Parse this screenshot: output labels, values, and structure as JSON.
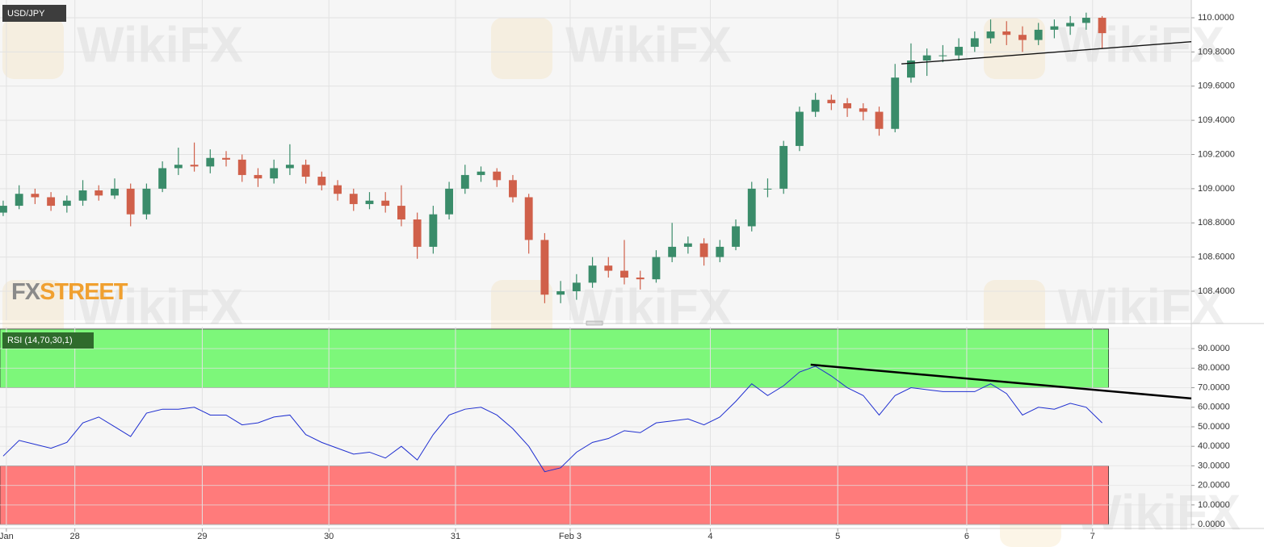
{
  "chart_data": [
    {
      "type": "candlestick",
      "title": "USD/JPY",
      "logo": [
        "FX",
        "STREET"
      ],
      "watermark": "WikiFX",
      "up_color": "#3a8c6a",
      "down_color": "#d0604a",
      "xlim": [
        -0.2,
        74.6
      ],
      "ylim": [
        108.23,
        110.104
      ],
      "yticks": [
        {
          "value": 108.4,
          "label": "108.4000"
        },
        {
          "value": 108.6,
          "label": "108.6000"
        },
        {
          "value": 108.8,
          "label": "108.8000"
        },
        {
          "value": 109.0,
          "label": "109.0000"
        },
        {
          "value": 109.2,
          "label": "109.2000"
        },
        {
          "value": 109.4,
          "label": "109.4000"
        },
        {
          "value": 109.6,
          "label": "109.6000"
        },
        {
          "value": 109.8,
          "label": "109.8000"
        },
        {
          "value": 110.0,
          "label": "110.0000"
        }
      ],
      "grid": true,
      "ohlc": [
        [
          108.86,
          108.93,
          108.84,
          108.9
        ],
        [
          108.9,
          109.02,
          108.88,
          108.97
        ],
        [
          108.97,
          109.0,
          108.91,
          108.95
        ],
        [
          108.95,
          108.98,
          108.87,
          108.9
        ],
        [
          108.9,
          108.96,
          108.86,
          108.93
        ],
        [
          108.93,
          109.05,
          108.9,
          108.99
        ],
        [
          108.99,
          109.02,
          108.93,
          108.96
        ],
        [
          108.96,
          109.06,
          108.94,
          109.0
        ],
        [
          109.0,
          109.03,
          108.78,
          108.85
        ],
        [
          108.85,
          109.03,
          108.82,
          109.0
        ],
        [
          109.0,
          109.16,
          108.98,
          109.12
        ],
        [
          109.12,
          109.24,
          109.08,
          109.14
        ],
        [
          109.14,
          109.27,
          109.1,
          109.13
        ],
        [
          109.13,
          109.23,
          109.09,
          109.18
        ],
        [
          109.18,
          109.22,
          109.13,
          109.17
        ],
        [
          109.17,
          109.2,
          109.04,
          109.08
        ],
        [
          109.08,
          109.12,
          109.01,
          109.06
        ],
        [
          109.06,
          109.17,
          109.03,
          109.12
        ],
        [
          109.12,
          109.26,
          109.08,
          109.14
        ],
        [
          109.14,
          109.17,
          109.03,
          109.07
        ],
        [
          109.07,
          109.1,
          108.99,
          109.02
        ],
        [
          109.02,
          109.05,
          108.93,
          108.97
        ],
        [
          108.97,
          109.0,
          108.87,
          108.91
        ],
        [
          108.91,
          108.98,
          108.88,
          108.93
        ],
        [
          108.93,
          108.98,
          108.86,
          108.9
        ],
        [
          108.9,
          109.02,
          108.78,
          108.82
        ],
        [
          108.82,
          108.86,
          108.59,
          108.66
        ],
        [
          108.66,
          108.9,
          108.62,
          108.85
        ],
        [
          108.85,
          109.04,
          108.82,
          109.0
        ],
        [
          109.0,
          109.14,
          108.97,
          109.08
        ],
        [
          109.08,
          109.13,
          109.04,
          109.1
        ],
        [
          109.1,
          109.12,
          109.01,
          109.05
        ],
        [
          109.05,
          109.08,
          108.92,
          108.95
        ],
        [
          108.95,
          108.97,
          108.62,
          108.7
        ],
        [
          108.7,
          108.74,
          108.33,
          108.38
        ],
        [
          108.38,
          108.46,
          108.33,
          108.4
        ],
        [
          108.4,
          108.5,
          108.35,
          108.45
        ],
        [
          108.45,
          108.6,
          108.42,
          108.55
        ],
        [
          108.55,
          108.6,
          108.48,
          108.52
        ],
        [
          108.52,
          108.7,
          108.44,
          108.48
        ],
        [
          108.48,
          108.52,
          108.41,
          108.47
        ],
        [
          108.47,
          108.64,
          108.45,
          108.6
        ],
        [
          108.6,
          108.8,
          108.57,
          108.66
        ],
        [
          108.66,
          108.72,
          108.62,
          108.68
        ],
        [
          108.68,
          108.71,
          108.55,
          108.6
        ],
        [
          108.6,
          108.7,
          108.57,
          108.66
        ],
        [
          108.66,
          108.82,
          108.64,
          108.78
        ],
        [
          108.78,
          109.04,
          108.75,
          109.0
        ],
        [
          109.0,
          109.06,
          108.95,
          109.0
        ],
        [
          109.0,
          109.28,
          108.97,
          109.25
        ],
        [
          109.25,
          109.48,
          109.22,
          109.45
        ],
        [
          109.45,
          109.56,
          109.42,
          109.52
        ],
        [
          109.52,
          109.55,
          109.46,
          109.5
        ],
        [
          109.5,
          109.53,
          109.42,
          109.47
        ],
        [
          109.47,
          109.5,
          109.4,
          109.45
        ],
        [
          109.45,
          109.48,
          109.31,
          109.35
        ],
        [
          109.35,
          109.73,
          109.33,
          109.65
        ],
        [
          109.65,
          109.85,
          109.62,
          109.75
        ],
        [
          109.75,
          109.82,
          109.66,
          109.78
        ],
        [
          109.78,
          109.84,
          109.74,
          109.78
        ],
        [
          109.78,
          109.88,
          109.75,
          109.83
        ],
        [
          109.83,
          109.92,
          109.8,
          109.88
        ],
        [
          109.88,
          109.99,
          109.85,
          109.92
        ],
        [
          109.92,
          109.98,
          109.84,
          109.9
        ],
        [
          109.9,
          109.95,
          109.8,
          109.87
        ],
        [
          109.87,
          109.97,
          109.84,
          109.93
        ],
        [
          109.93,
          109.99,
          109.88,
          109.95
        ],
        [
          109.95,
          110.01,
          109.9,
          109.97
        ],
        [
          109.97,
          110.03,
          109.93,
          110.0
        ],
        [
          110.0,
          110.01,
          109.82,
          109.91
        ]
      ],
      "trendlines": [
        {
          "x": [
            56.4,
            74.6
          ],
          "y": [
            109.73,
            109.86
          ],
          "color": "#111111"
        }
      ]
    },
    {
      "type": "line",
      "title": "RSI (14,70,30,1)",
      "color": "#1f2fd0",
      "xlim": [
        -0.2,
        74.6
      ],
      "ylim": [
        -0.8,
        101.2
      ],
      "yticks": [
        {
          "value": 0,
          "label": "0.0000"
        },
        {
          "value": 10,
          "label": "10.0000"
        },
        {
          "value": 20,
          "label": "20.0000"
        },
        {
          "value": 30,
          "label": "30.0000"
        },
        {
          "value": 40,
          "label": "40.0000"
        },
        {
          "value": 50,
          "label": "50.0000"
        },
        {
          "value": 60,
          "label": "60.0000"
        },
        {
          "value": 70,
          "label": "70.0000"
        },
        {
          "value": 80,
          "label": "80.0000"
        },
        {
          "value": 90,
          "label": "90.0000"
        }
      ],
      "xticks": [
        {
          "value": 0.2,
          "label": "Jan"
        },
        {
          "value": 4.5,
          "label": "28"
        },
        {
          "value": 12.5,
          "label": "29"
        },
        {
          "value": 20.45,
          "label": "30"
        },
        {
          "value": 28.4,
          "label": "31"
        },
        {
          "value": 35.6,
          "label": "Feb 3"
        },
        {
          "value": 44.4,
          "label": "4"
        },
        {
          "value": 52.4,
          "label": "5"
        },
        {
          "value": 60.5,
          "label": "6"
        },
        {
          "value": 68.4,
          "label": "7"
        }
      ],
      "grid": true,
      "zones": [
        {
          "from": 70,
          "to": 100,
          "color": "#7df77a"
        },
        {
          "from": 0,
          "to": 30,
          "color": "#ff7b7b"
        }
      ],
      "values": [
        35,
        43,
        41,
        39,
        42,
        52,
        55,
        50,
        45,
        57,
        59,
        59,
        60,
        56,
        56,
        51,
        52,
        55,
        56,
        46,
        42,
        39,
        36,
        37,
        34,
        40,
        33,
        46,
        56,
        59,
        60,
        56,
        49,
        40,
        27,
        29,
        37,
        42,
        44,
        48,
        47,
        52,
        53,
        54,
        51,
        55,
        63,
        72,
        66,
        71,
        78,
        81,
        76,
        70,
        66,
        56,
        66,
        70,
        69,
        68,
        68,
        68,
        72,
        67,
        56,
        60,
        59,
        62,
        60,
        52
      ],
      "trendlines": [
        {
          "x": [
            50.7,
            74.6
          ],
          "y": [
            81.8,
            64.5
          ],
          "color": "#000000"
        }
      ]
    }
  ]
}
